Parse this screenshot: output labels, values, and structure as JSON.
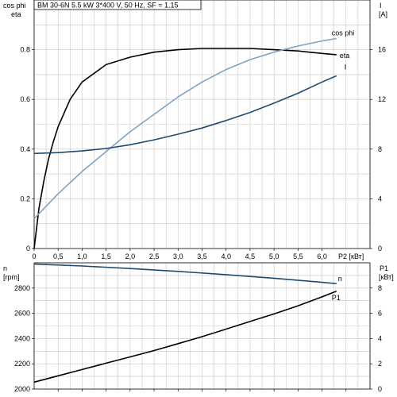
{
  "header": {
    "title": "BM 30-6N   5.5 kW   3*400 V, 50 Hz, SF = 1.15"
  },
  "colors": {
    "eta": "#000000",
    "cos_phi": "#7fa3c4",
    "I": "#1e4a72",
    "n": "#1e4a72",
    "P1": "#000000"
  },
  "chart_data": [
    {
      "type": "line",
      "title": "BM 30-6N   5.5 kW   3*400 V, 50 Hz, SF = 1.15",
      "xlabel": "P2 [кВт]",
      "xlim": [
        0,
        7.0
      ],
      "x_ticks": [
        "0",
        "0,5",
        "1,0",
        "1,5",
        "2,0",
        "2,5",
        "3,0",
        "3,5",
        "4,0",
        "4,5",
        "5,0",
        "5,5",
        "6,0"
      ],
      "x_tick_values": [
        0,
        0.5,
        1.0,
        1.5,
        2.0,
        2.5,
        3.0,
        3.5,
        4.0,
        4.5,
        5.0,
        5.5,
        6.0
      ],
      "y_left": {
        "label_line1": "cos phi",
        "label_line2": "eta",
        "lim": [
          0,
          1.0
        ],
        "ticks": [
          "0",
          "0.2",
          "0.4",
          "0.6",
          "0.8"
        ],
        "tick_values": [
          0,
          0.2,
          0.4,
          0.6,
          0.8
        ]
      },
      "y_right": {
        "label_line1": "I",
        "label_line2": "[A]",
        "lim": [
          0,
          20
        ],
        "ticks": [
          "0",
          "4",
          "8",
          "12",
          "16"
        ],
        "tick_values": [
          0,
          4,
          8,
          12,
          16
        ]
      },
      "grid": true,
      "series": [
        {
          "name": "eta",
          "axis": "left",
          "color": "#000000",
          "x": [
            0,
            0.1,
            0.2,
            0.3,
            0.4,
            0.5,
            0.75,
            1.0,
            1.5,
            2.0,
            2.5,
            3.0,
            3.5,
            4.0,
            4.5,
            5.0,
            5.5,
            6.0,
            6.3
          ],
          "y": [
            0.0,
            0.16,
            0.27,
            0.36,
            0.43,
            0.49,
            0.6,
            0.67,
            0.74,
            0.77,
            0.79,
            0.8,
            0.805,
            0.805,
            0.805,
            0.8,
            0.795,
            0.785,
            0.78
          ]
        },
        {
          "name": "cos phi",
          "axis": "left",
          "color": "#7fa3c4",
          "x": [
            0,
            0.5,
            1.0,
            1.5,
            2.0,
            2.5,
            3.0,
            3.5,
            4.0,
            4.5,
            5.0,
            5.5,
            6.0,
            6.3
          ],
          "y": [
            0.12,
            0.22,
            0.31,
            0.39,
            0.47,
            0.54,
            0.61,
            0.67,
            0.72,
            0.76,
            0.79,
            0.815,
            0.835,
            0.845
          ]
        },
        {
          "name": "I",
          "axis": "right",
          "color": "#1e4a72",
          "x": [
            0,
            0.5,
            1.0,
            1.5,
            2.0,
            2.5,
            3.0,
            3.5,
            4.0,
            4.5,
            5.0,
            5.5,
            6.0,
            6.3
          ],
          "y": [
            7.65,
            7.72,
            7.85,
            8.05,
            8.35,
            8.75,
            9.2,
            9.7,
            10.3,
            10.95,
            11.7,
            12.5,
            13.4,
            13.9
          ]
        }
      ]
    },
    {
      "type": "line",
      "xlim": [
        0,
        7.0
      ],
      "y_left": {
        "label_line1": "n",
        "label_line2": "[rpm]",
        "lim": [
          2000,
          3000
        ],
        "ticks": [
          "2000",
          "2200",
          "2400",
          "2600",
          "2800"
        ],
        "tick_values": [
          2000,
          2200,
          2400,
          2600,
          2800
        ]
      },
      "y_right": {
        "label_line1": "P1",
        "label_line2": "[кВт]",
        "lim": [
          0,
          10
        ],
        "ticks": [
          "0",
          "2",
          "4",
          "6",
          "8"
        ],
        "tick_values": [
          0,
          2,
          4,
          6,
          8
        ]
      },
      "grid": true,
      "series": [
        {
          "name": "n",
          "axis": "left",
          "color": "#1e4a72",
          "x": [
            0,
            1.0,
            2.0,
            3.0,
            4.0,
            5.0,
            6.0,
            6.3
          ],
          "y": [
            2990,
            2975,
            2955,
            2932,
            2906,
            2878,
            2845,
            2835
          ]
        },
        {
          "name": "P1",
          "axis": "right",
          "color": "#000000",
          "x": [
            0,
            0.5,
            1.0,
            1.5,
            2.0,
            2.5,
            3.0,
            3.5,
            4.0,
            4.5,
            5.0,
            5.5,
            6.0,
            6.3
          ],
          "y": [
            0.55,
            1.05,
            1.55,
            2.05,
            2.55,
            3.05,
            3.6,
            4.15,
            4.75,
            5.35,
            5.95,
            6.6,
            7.3,
            7.75
          ]
        }
      ]
    }
  ]
}
